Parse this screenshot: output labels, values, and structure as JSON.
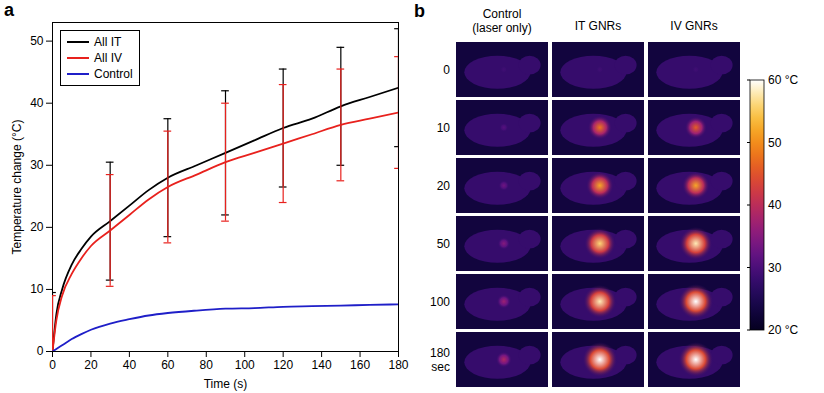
{
  "chart_data": [
    {
      "type": "line",
      "title": "a",
      "x_label": "Time (s)",
      "y_label": "Temperature change (°C)",
      "x": [
        0,
        2,
        5,
        10,
        15,
        20,
        30,
        40,
        50,
        60,
        75,
        90,
        105,
        120,
        135,
        150,
        165,
        180
      ],
      "series": [
        {
          "name": "All IT",
          "color": "#000000",
          "values": [
            0,
            6,
            10,
            14,
            16.5,
            18.5,
            21,
            23.5,
            26,
            28,
            30,
            32,
            34,
            36,
            37.5,
            39.5,
            41,
            42.5
          ],
          "errors": [
            9.5,
            null,
            null,
            null,
            null,
            null,
            9.5,
            null,
            null,
            9.5,
            null,
            10,
            null,
            9.5,
            null,
            9.5,
            null,
            9.5
          ]
        },
        {
          "name": "All IV",
          "color": "#e8211d",
          "values": [
            0,
            5,
            9,
            12.5,
            15,
            17,
            19.5,
            22,
            24.5,
            26.5,
            28.5,
            30.5,
            32,
            33.5,
            35,
            36.5,
            37.5,
            38.5
          ],
          "errors": [
            9,
            null,
            null,
            null,
            null,
            null,
            9,
            null,
            null,
            9,
            null,
            9.5,
            null,
            9.5,
            null,
            9,
            null,
            9
          ]
        },
        {
          "name": "Control",
          "color": "#1f1fc8",
          "values": [
            0,
            0.4,
            1,
            2,
            2.8,
            3.5,
            4.5,
            5.2,
            5.8,
            6.2,
            6.6,
            6.9,
            7,
            7.2,
            7.3,
            7.4,
            7.5,
            7.6
          ]
        }
      ],
      "xlim": [
        0,
        180
      ],
      "xticks": [
        0,
        20,
        40,
        60,
        80,
        100,
        120,
        140,
        160,
        180
      ],
      "ylim": [
        0,
        53
      ],
      "yticks": [
        0,
        10,
        20,
        30,
        40,
        50
      ],
      "grid": false,
      "legend": "upper left"
    },
    {
      "type": "thermal_images",
      "title": "b",
      "columns": [
        "Control (laser only)",
        "IT GNRs",
        "IV GNRs"
      ],
      "times": [
        0,
        10,
        20,
        50,
        100,
        180
      ],
      "time_unit": "sec",
      "body_temperature": 28,
      "peak_temperatures": [
        [
          29,
          31,
          33,
          35,
          37,
          39
        ],
        [
          29,
          48,
          52,
          56,
          58,
          60
        ],
        [
          29,
          46,
          52,
          58,
          60,
          60
        ]
      ],
      "colorbar": {
        "range": [
          20,
          60
        ],
        "ticks": [
          {
            "value": 20,
            "label": "20 °C"
          },
          30,
          40,
          50,
          {
            "value": 60,
            "label": "60 °C"
          }
        ]
      }
    }
  ]
}
